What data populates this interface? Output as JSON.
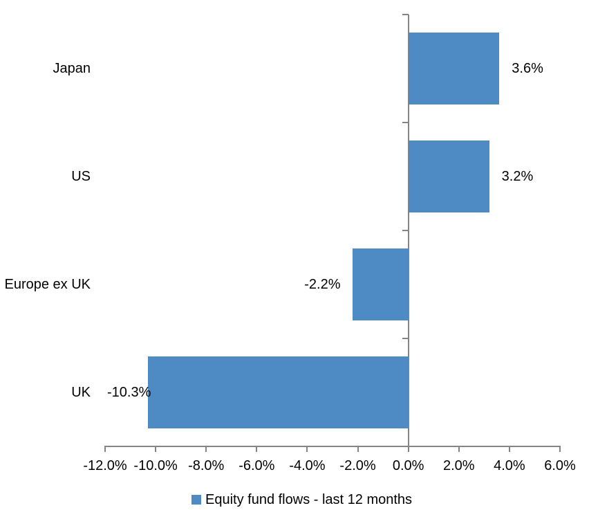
{
  "chart_data": {
    "type": "bar",
    "orientation": "horizontal",
    "title": "",
    "categories": [
      "Japan",
      "US",
      "Europe ex UK",
      "UK"
    ],
    "series": [
      {
        "name": "Equity fund flows - last 12 months",
        "values": [
          3.6,
          3.2,
          -2.2,
          -10.3
        ],
        "data_labels": [
          "3.6%",
          "3.2%",
          "-2.2%",
          "-10.3%"
        ]
      }
    ],
    "xlim": [
      -12,
      6
    ],
    "x_ticks": [
      -12,
      -10,
      -8,
      -6,
      -4,
      -2,
      0,
      2,
      4,
      6
    ],
    "x_tick_labels": [
      "-12.0%",
      "-10.0%",
      "-8.0%",
      "-6.0%",
      "-4.0%",
      "-2.0%",
      "0.0%",
      "2.0%",
      "4.0%",
      "6.0%"
    ],
    "grid": false,
    "legend": {
      "position": "bottom",
      "label": "Equity fund flows - last 12 months"
    },
    "colors": {
      "bar": "#4E8AC4",
      "axis": "#848484",
      "text": "#000000",
      "background": "#FFFFFF"
    }
  }
}
